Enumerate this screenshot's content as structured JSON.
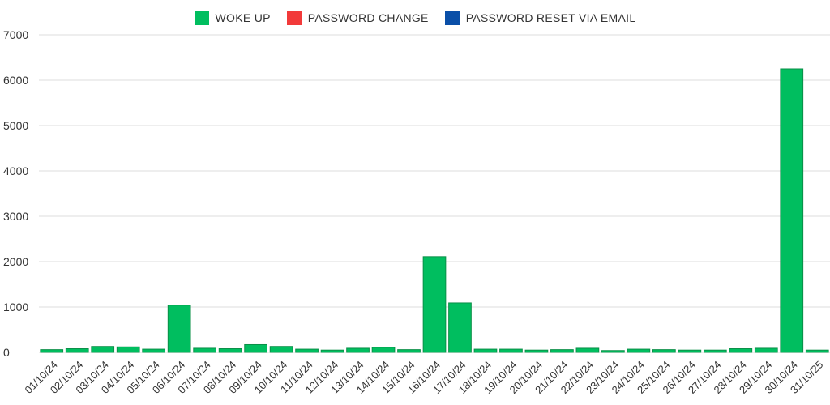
{
  "chart_data": {
    "type": "bar",
    "legend_position": "top-center",
    "grid": true,
    "ylim": [
      0,
      7000
    ],
    "yticks": [
      0,
      1000,
      2000,
      3000,
      4000,
      5000,
      6000,
      7000
    ],
    "categories": [
      "01/10/24",
      "02/10/24",
      "03/10/24",
      "04/10/24",
      "05/10/24",
      "06/10/24",
      "07/10/24",
      "08/10/24",
      "09/10/24",
      "10/10/24",
      "11/10/24",
      "12/10/24",
      "13/10/24",
      "14/10/24",
      "15/10/24",
      "16/10/24",
      "17/10/24",
      "18/10/24",
      "19/10/24",
      "20/10/24",
      "21/10/24",
      "22/10/24",
      "23/10/24",
      "24/10/24",
      "25/10/24",
      "26/10/24",
      "27/10/24",
      "28/10/24",
      "29/10/24",
      "30/10/24",
      "31/10/25"
    ],
    "series": [
      {
        "name": "WOKE UP",
        "color": "#00BE5F",
        "values": [
          60,
          80,
          130,
          120,
          70,
          1040,
          90,
          80,
          170,
          130,
          70,
          50,
          90,
          110,
          60,
          2110,
          1090,
          70,
          70,
          50,
          60,
          90,
          40,
          70,
          60,
          50,
          50,
          80,
          90,
          6250,
          50
        ]
      },
      {
        "name": "PASSWORD CHANGE",
        "color": "#F23A3A",
        "values": [
          0,
          0,
          0,
          0,
          0,
          0,
          0,
          0,
          0,
          0,
          0,
          0,
          0,
          0,
          0,
          0,
          0,
          0,
          0,
          0,
          0,
          0,
          0,
          0,
          0,
          0,
          0,
          0,
          0,
          0,
          0
        ]
      },
      {
        "name": "PASSWORD RESET VIA EMAIL",
        "color": "#0A4FA8",
        "values": [
          0,
          0,
          0,
          0,
          0,
          0,
          0,
          0,
          0,
          0,
          0,
          0,
          0,
          0,
          0,
          0,
          0,
          0,
          0,
          0,
          0,
          0,
          0,
          0,
          0,
          0,
          0,
          0,
          0,
          0,
          0
        ]
      }
    ]
  }
}
